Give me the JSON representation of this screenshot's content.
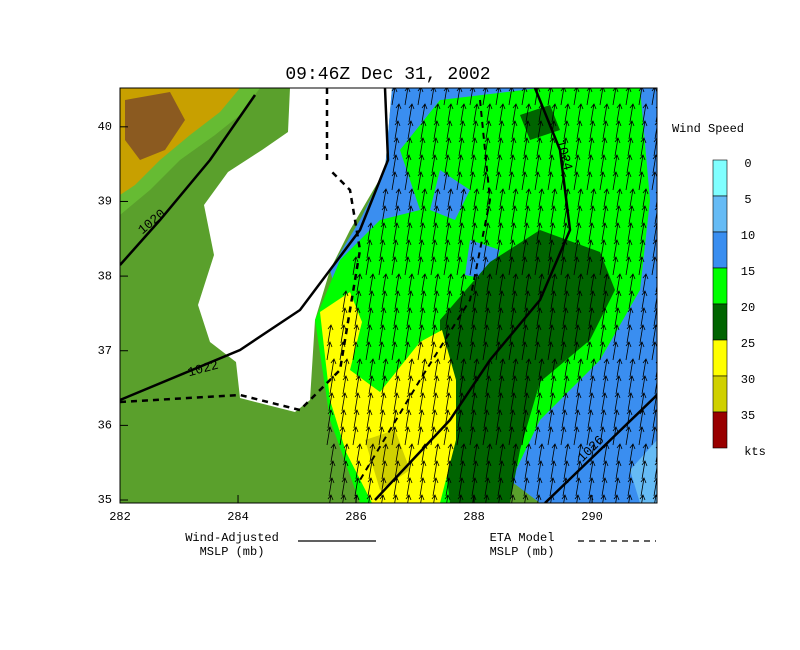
{
  "title": "09:46Z Dec 31, 2002",
  "x_axis": {
    "range": [
      282,
      291.1
    ],
    "ticks": [
      282,
      284,
      286,
      288,
      290
    ]
  },
  "y_axis": {
    "range": [
      34.96,
      40.52
    ],
    "ticks": [
      35,
      36,
      37,
      38,
      39,
      40
    ]
  },
  "wind_legend": {
    "title": "Wind Speed",
    "levels": [
      {
        "label": "0",
        "color": "#80ffff"
      },
      {
        "label": "5",
        "color": "#66bbf5"
      },
      {
        "label": "10",
        "color": "#3a8ef0"
      },
      {
        "label": "15",
        "color": "#00ff00"
      },
      {
        "label": "20",
        "color": "#006400"
      },
      {
        "label": "25",
        "color": "#ffff00"
      },
      {
        "label": "30",
        "color": "#d0d000"
      },
      {
        "label": "35",
        "color": "#990000"
      }
    ],
    "unit": "kts"
  },
  "contour_labels": [
    "1020",
    "1022",
    "1024",
    "1026"
  ],
  "line_legend": [
    {
      "lines": [
        "Wind-Adjusted",
        "MSLP (mb)"
      ],
      "style": "solid"
    },
    {
      "lines": [
        "ETA Model",
        "MSLP (mb)"
      ],
      "style": "dashed"
    }
  ]
}
